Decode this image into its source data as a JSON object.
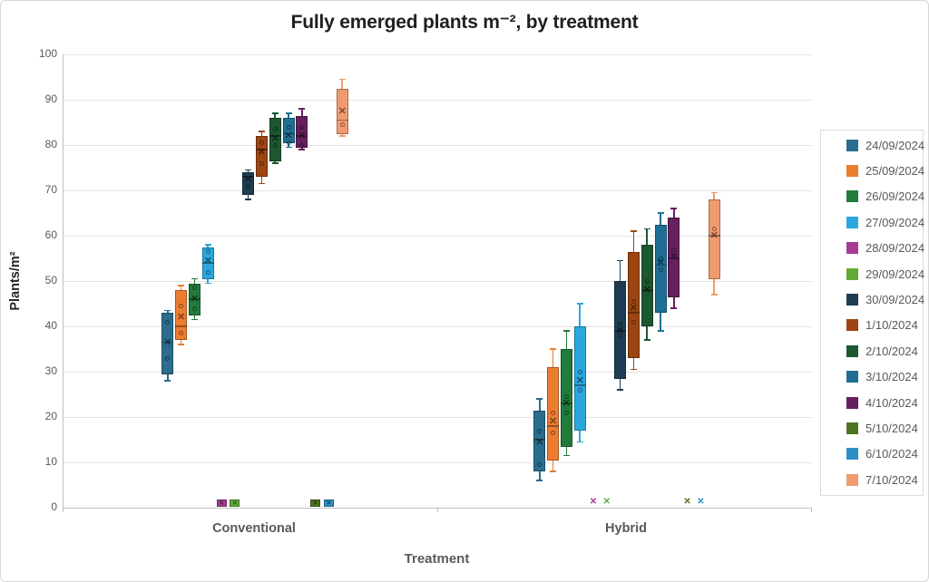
{
  "chart_data": {
    "type": "boxplot",
    "title": "Fully emerged plants m⁻², by treatment",
    "xlabel": "Treatment",
    "ylabel": "Plants/m²",
    "ylim": [
      0,
      100
    ],
    "yticks": [
      0,
      10,
      20,
      30,
      40,
      50,
      60,
      70,
      80,
      90,
      100
    ],
    "grid": true,
    "legend_position": "right",
    "groups": [
      "Conventional",
      "Hybrid"
    ],
    "zero_marker_styles": [
      "box",
      "x"
    ],
    "icons": {
      "mean_marker": "✕",
      "zero_marker": "✕"
    },
    "colors": {
      "grid": "#E4E4E4",
      "axis": "#BFBFBF",
      "tick_label": "#595959",
      "category_label": "#595959",
      "legend_text": "#595959",
      "box_border": "rgba(0,0,0,0.30)",
      "median_line": "rgba(0,0,0,0.35)",
      "mean_marker": "rgba(0,0,0,0.50)",
      "outlier_dot": "rgba(0,0,0,0.45)"
    },
    "series": [
      {
        "name": "24/09/2024",
        "color": "#2A6D8E"
      },
      {
        "name": "25/09/2024",
        "color": "#EC7C30"
      },
      {
        "name": "26/09/2024",
        "color": "#217B3B"
      },
      {
        "name": "27/09/2024",
        "color": "#2BA7DE"
      },
      {
        "name": "28/09/2024",
        "color": "#A93A98"
      },
      {
        "name": "29/09/2024",
        "color": "#61AC35"
      },
      {
        "name": "30/09/2024",
        "color": "#1E3D53"
      },
      {
        "name": "1/10/2024",
        "color": "#9C4512"
      },
      {
        "name": "2/10/2024",
        "color": "#1C5730"
      },
      {
        "name": "3/10/2024",
        "color": "#1F6F95"
      },
      {
        "name": "4/10/2024",
        "color": "#652060"
      },
      {
        "name": "5/10/2024",
        "color": "#4E7421"
      },
      {
        "name": "6/10/2024",
        "color": "#2F8FC5"
      },
      {
        "name": "7/10/2024",
        "color": "#F09B6F"
      }
    ],
    "boxes": [
      [
        {
          "min": 28,
          "q1": 29.5,
          "median": 36.5,
          "mean": 36.5,
          "q3": 43,
          "max": 43.5,
          "dots": [
            41,
            33
          ]
        },
        {
          "min": 36,
          "q1": 37,
          "median": 40,
          "mean": 42,
          "q3": 48,
          "max": 49,
          "dots": [
            44.5,
            38.5
          ]
        },
        {
          "min": 41.5,
          "q1": 42.5,
          "median": 46,
          "mean": 46,
          "q3": 49.5,
          "max": 50.5,
          "dots": [
            48.5,
            44
          ]
        },
        {
          "min": 49.5,
          "q1": 50.5,
          "median": 54,
          "mean": 54.5,
          "q3": 57.5,
          "max": 58,
          "dots": [
            56.5,
            52
          ]
        },
        {
          "zero": true
        },
        {
          "zero": true
        },
        {
          "min": 68,
          "q1": 69,
          "median": 73,
          "mean": 72.5,
          "q3": 74,
          "max": 74.5,
          "dots": [
            71
          ]
        },
        {
          "min": 71.5,
          "q1": 73,
          "median": 79,
          "mean": 78.5,
          "q3": 82,
          "max": 83,
          "dots": [
            80.5,
            76
          ]
        },
        {
          "min": 76,
          "q1": 76.5,
          "median": 82,
          "mean": 81.5,
          "q3": 86,
          "max": 87,
          "dots": [
            83.5,
            80
          ]
        },
        {
          "min": 79.5,
          "q1": 80.5,
          "median": 82.5,
          "mean": 82,
          "q3": 86,
          "max": 87,
          "dots": [
            84,
            80.5
          ]
        },
        {
          "min": 79,
          "q1": 79.5,
          "median": 82,
          "mean": 82,
          "q3": 86.5,
          "max": 88,
          "dots": [
            84,
            80
          ]
        },
        {
          "zero": true
        },
        {
          "zero": true
        },
        {
          "min": 82,
          "q1": 82.5,
          "median": 85.5,
          "mean": 87.5,
          "q3": 92.5,
          "max": 94.5,
          "dots": [
            84.5
          ]
        }
      ],
      [
        {
          "min": 6,
          "q1": 8,
          "median": 15,
          "mean": 14.5,
          "q3": 21.5,
          "max": 24,
          "dots": [
            17,
            9.5
          ]
        },
        {
          "min": 8,
          "q1": 10.5,
          "median": 18,
          "mean": 19,
          "q3": 31,
          "max": 35,
          "dots": [
            21,
            16.5
          ]
        },
        {
          "min": 11.5,
          "q1": 13.5,
          "median": 23,
          "mean": 23,
          "q3": 35,
          "max": 39,
          "dots": [
            24.5,
            21
          ]
        },
        {
          "min": 14.5,
          "q1": 17,
          "median": 27,
          "mean": 28,
          "q3": 40,
          "max": 45,
          "dots": [
            30,
            26
          ]
        },
        {
          "zero": true
        },
        {
          "zero": true
        },
        {
          "min": 26,
          "q1": 28.5,
          "median": 39,
          "mean": 39,
          "q3": 50,
          "max": 54.5,
          "dots": [
            40.5,
            38
          ]
        },
        {
          "min": 30.5,
          "q1": 33,
          "median": 43,
          "mean": 44,
          "q3": 56.5,
          "max": 61,
          "dots": [
            45.5,
            41
          ]
        },
        {
          "min": 37,
          "q1": 40,
          "median": 48,
          "mean": 48,
          "q3": 58,
          "max": 61.5,
          "dots": [
            50
          ]
        },
        {
          "min": 39,
          "q1": 43,
          "median": 53.5,
          "mean": 54,
          "q3": 62.5,
          "max": 65,
          "dots": [
            55,
            52.5
          ]
        },
        {
          "min": 44,
          "q1": 46.5,
          "median": 55,
          "mean": 55.5,
          "q3": 64,
          "max": 66,
          "dots": [
            57
          ]
        },
        {
          "zero": true
        },
        {
          "zero": true
        },
        {
          "min": 47,
          "q1": 50.5,
          "median": 60,
          "mean": 60,
          "q3": 68,
          "max": 69.5,
          "dots": [
            61.5
          ]
        }
      ]
    ]
  }
}
